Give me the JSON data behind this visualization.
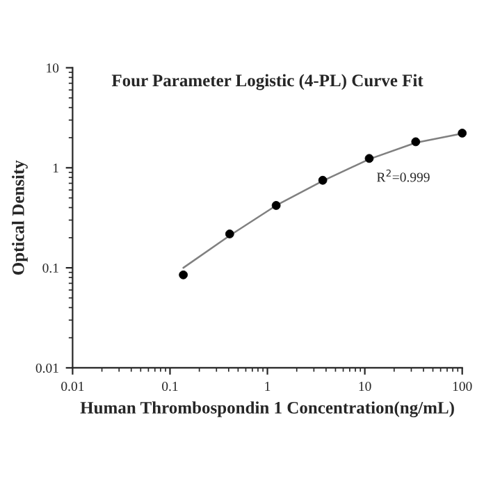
{
  "chart_data": {
    "type": "scatter",
    "title": "Four Parameter Logistic (4-PL) Curve Fit",
    "xlabel": "Human Thrombospondin 1 Concentration(ng/mL)",
    "ylabel": "Optical Density",
    "annotations": [
      "R$^{2}$=0.999"
    ],
    "series": [
      {
        "type": "line",
        "color": "#808080",
        "marker": "none",
        "x": [
          0.137,
          0.41,
          1.23,
          3.7,
          11.1,
          33.3,
          100
        ],
        "values": [
          0.1,
          0.21,
          0.42,
          0.74,
          1.22,
          1.78,
          2.2
        ]
      },
      {
        "color": "#000000",
        "marker": "circle",
        "x": [
          0.137,
          0.41,
          1.23,
          3.7,
          11.1,
          33.3,
          100
        ],
        "values": [
          0.085,
          0.218,
          0.42,
          0.75,
          1.24,
          1.82,
          2.22
        ]
      }
    ],
    "log": "xy",
    "xlim": [
      0.01,
      100
    ],
    "ylim": [
      0.01,
      10
    ],
    "xticks": [
      0.01,
      0.1,
      1,
      10,
      100
    ],
    "yticks": [
      0.01,
      0.1,
      1,
      10
    ],
    "grid": false
  }
}
